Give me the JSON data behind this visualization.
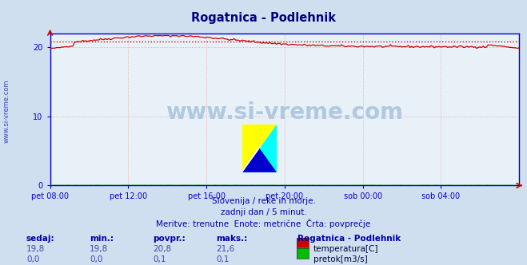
{
  "title": "Rogatnica - Podlehnik",
  "bg_color": "#d0dff0",
  "plot_bg_color": "#e8f0f8",
  "grid_color": "#e8a0a0",
  "title_color": "#000080",
  "axis_color": "#0000cc",
  "tick_color": "#0000cc",
  "text_color": "#0000aa",
  "watermark": "www.si-vreme.com",
  "watermark_color": "#b0c8e0",
  "subtitle_lines": [
    "Slovenija / reke in morje.",
    "zadnji dan / 5 minut.",
    "Meritve: trenutne  Enote: metrične  Črta: povprečje"
  ],
  "table_headers": [
    "sedaj:",
    "min.:",
    "povpr.:",
    "maks.:"
  ],
  "table_row1": [
    "19,8",
    "19,8",
    "20,8",
    "21,6"
  ],
  "table_row2": [
    "0,0",
    "0,0",
    "0,1",
    "0,1"
  ],
  "legend_title": "Rogatnica - Podlehnik",
  "legend_items": [
    "temperatura[C]",
    "pretok[m3/s]"
  ],
  "legend_colors": [
    "#cc0000",
    "#00bb00"
  ],
  "temp_avg": 20.8,
  "temp_min": 19.8,
  "temp_max": 21.6,
  "ylim": [
    0,
    22
  ],
  "yticks": [
    0,
    10,
    20
  ],
  "x_tick_labels": [
    "pet 08:00",
    "pet 12:00",
    "pet 16:00",
    "pet 20:00",
    "sob 00:00",
    "sob 04:00"
  ],
  "avg_line_value": 20.8,
  "avg_line_color": "#cc0000",
  "n_points": 289
}
